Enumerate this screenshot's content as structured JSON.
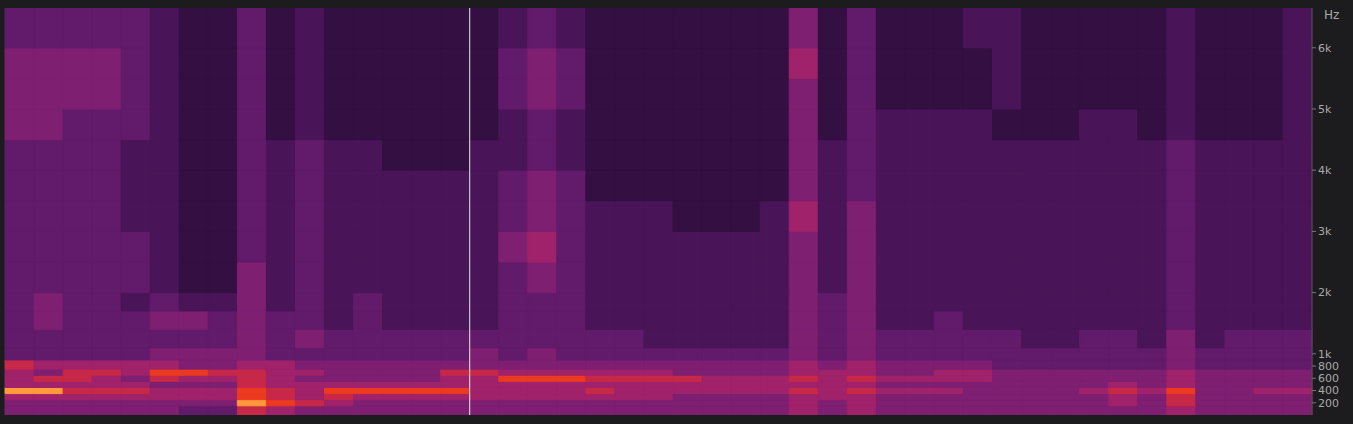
{
  "chart_data": {
    "type": "heatmap",
    "y_label": "Hz",
    "tick_labels": "y",
    "ylim": [
      0,
      6650
    ],
    "yticks": [
      200,
      400,
      600,
      800,
      {
        "value": 1000,
        "label": "1k"
      },
      {
        "value": 2000,
        "label": "2k"
      },
      {
        "value": 3000,
        "label": "3k"
      },
      {
        "value": 4000,
        "label": "4k"
      },
      {
        "value": 5000,
        "label": "5k"
      },
      {
        "value": 6000,
        "label": "6k"
      }
    ],
    "y_bins": [
      0,
      150,
      250,
      350,
      450,
      550,
      650,
      750,
      900,
      1100,
      1400,
      1700,
      2000,
      2500,
      3000,
      3500,
      4000,
      4500,
      5000,
      5500,
      6000,
      6650
    ],
    "color_range": [
      0,
      9
    ],
    "colors": [
      "#120616",
      "#220a2c",
      "#340f42",
      "#4a1558",
      "#621a6a",
      "#7e1f72",
      "#a0226a",
      "#c82848",
      "#ec3a20",
      "#ff9a3c"
    ],
    "cursor": 16,
    "cells": [
      [
        5,
        5,
        6,
        9,
        6,
        6,
        6,
        7,
        4,
        4,
        4,
        4,
        4,
        4,
        4,
        4,
        4,
        5,
        5,
        5,
        4
      ],
      [
        5,
        5,
        6,
        9,
        6,
        7,
        5,
        6,
        4,
        4,
        5,
        5,
        4,
        4,
        4,
        4,
        4,
        5,
        5,
        5,
        4
      ],
      [
        5,
        5,
        6,
        7,
        6,
        7,
        7,
        6,
        4,
        4,
        4,
        4,
        4,
        4,
        4,
        4,
        4,
        4,
        5,
        5,
        4
      ],
      [
        5,
        5,
        6,
        7,
        6,
        6,
        7,
        6,
        4,
        4,
        4,
        4,
        4,
        4,
        4,
        4,
        4,
        4,
        5,
        5,
        4
      ],
      [
        5,
        5,
        6,
        7,
        6,
        5,
        6,
        6,
        4,
        4,
        4,
        3,
        4,
        4,
        3,
        3,
        3,
        4,
        4,
        4,
        4
      ],
      [
        5,
        5,
        6,
        6,
        5,
        7,
        8,
        6,
        5,
        4,
        5,
        4,
        3,
        3,
        3,
        3,
        3,
        3,
        3,
        3,
        3
      ],
      [
        4,
        5,
        6,
        6,
        5,
        6,
        8,
        5,
        5,
        4,
        5,
        3,
        2,
        2,
        2,
        2,
        2,
        2,
        2,
        2,
        2
      ],
      [
        4,
        5,
        6,
        6,
        5,
        6,
        7,
        5,
        5,
        4,
        4,
        3,
        2,
        2,
        2,
        2,
        2,
        2,
        2,
        2,
        2
      ],
      [
        7,
        9,
        8,
        8,
        7,
        7,
        7,
        6,
        5,
        5,
        5,
        5,
        5,
        4,
        4,
        4,
        4,
        4,
        4,
        4,
        4
      ],
      [
        6,
        8,
        7,
        7,
        6,
        6,
        6,
        6,
        4,
        4,
        4,
        3,
        3,
        3,
        3,
        3,
        3,
        2,
        2,
        2,
        2
      ],
      [
        5,
        7,
        6,
        6,
        6,
        5,
        6,
        5,
        4,
        5,
        4,
        4,
        4,
        4,
        4,
        4,
        4,
        3,
        3,
        3,
        3
      ],
      [
        5,
        6,
        7,
        8,
        6,
        5,
        5,
        5,
        4,
        4,
        3,
        3,
        3,
        3,
        3,
        3,
        3,
        2,
        2,
        2,
        2
      ],
      [
        5,
        5,
        6,
        8,
        6,
        5,
        5,
        5,
        4,
        4,
        4,
        4,
        3,
        3,
        3,
        3,
        3,
        2,
        2,
        2,
        2
      ],
      [
        5,
        5,
        6,
        8,
        6,
        5,
        5,
        5,
        4,
        4,
        3,
        3,
        3,
        3,
        3,
        3,
        2,
        2,
        2,
        2,
        2
      ],
      [
        5,
        5,
        6,
        8,
        6,
        5,
        5,
        5,
        4,
        4,
        3,
        3,
        3,
        3,
        3,
        3,
        2,
        2,
        2,
        2,
        2
      ],
      [
        5,
        5,
        6,
        8,
        6,
        6,
        7,
        5,
        4,
        4,
        3,
        3,
        3,
        3,
        3,
        3,
        2,
        2,
        2,
        2,
        2
      ],
      [
        5,
        5,
        6,
        6,
        6,
        6,
        7,
        5,
        5,
        4,
        3,
        3,
        3,
        3,
        3,
        3,
        3,
        2,
        2,
        2,
        2
      ],
      [
        5,
        5,
        6,
        6,
        6,
        8,
        6,
        5,
        4,
        4,
        4,
        4,
        4,
        5,
        4,
        4,
        3,
        3,
        4,
        4,
        3
      ],
      [
        5,
        5,
        6,
        6,
        6,
        8,
        6,
        5,
        5,
        4,
        4,
        4,
        5,
        6,
        5,
        5,
        4,
        4,
        5,
        5,
        4
      ],
      [
        5,
        5,
        6,
        6,
        6,
        8,
        6,
        5,
        4,
        4,
        4,
        4,
        4,
        4,
        4,
        4,
        3,
        3,
        4,
        4,
        3
      ],
      [
        5,
        5,
        6,
        7,
        6,
        7,
        6,
        5,
        4,
        4,
        3,
        3,
        3,
        3,
        3,
        2,
        2,
        2,
        2,
        2,
        2
      ],
      [
        5,
        5,
        6,
        6,
        6,
        7,
        6,
        5,
        4,
        4,
        3,
        3,
        3,
        3,
        3,
        2,
        2,
        2,
        2,
        2,
        2
      ],
      [
        5,
        5,
        6,
        6,
        6,
        7,
        6,
        5,
        4,
        3,
        3,
        3,
        3,
        3,
        3,
        2,
        2,
        2,
        2,
        2,
        2
      ],
      [
        5,
        5,
        5,
        6,
        6,
        7,
        5,
        5,
        4,
        3,
        3,
        3,
        3,
        3,
        2,
        2,
        2,
        2,
        2,
        2,
        2
      ],
      [
        5,
        5,
        5,
        6,
        6,
        6,
        5,
        5,
        4,
        3,
        3,
        3,
        3,
        3,
        2,
        2,
        2,
        2,
        2,
        2,
        2
      ],
      [
        5,
        5,
        5,
        6,
        6,
        6,
        5,
        5,
        4,
        3,
        3,
        3,
        3,
        3,
        2,
        2,
        2,
        2,
        2,
        2,
        2
      ],
      [
        5,
        5,
        5,
        6,
        6,
        6,
        5,
        5,
        4,
        3,
        3,
        3,
        3,
        3,
        3,
        2,
        2,
        2,
        2,
        2,
        2
      ],
      [
        6,
        6,
        6,
        7,
        6,
        7,
        6,
        6,
        5,
        5,
        5,
        5,
        5,
        5,
        6,
        5,
        5,
        5,
        5,
        6,
        5
      ],
      [
        5,
        5,
        6,
        6,
        6,
        6,
        6,
        5,
        4,
        4,
        4,
        4,
        3,
        3,
        3,
        3,
        3,
        2,
        2,
        2,
        2
      ],
      [
        6,
        6,
        6,
        7,
        6,
        7,
        6,
        6,
        5,
        5,
        5,
        5,
        5,
        5,
        5,
        4,
        4,
        4,
        4,
        4,
        4
      ],
      [
        5,
        5,
        5,
        6,
        5,
        6,
        5,
        5,
        4,
        4,
        3,
        3,
        3,
        3,
        3,
        3,
        3,
        3,
        2,
        2,
        2
      ],
      [
        5,
        5,
        5,
        6,
        5,
        6,
        5,
        5,
        4,
        4,
        3,
        3,
        3,
        3,
        3,
        3,
        3,
        3,
        2,
        2,
        2
      ],
      [
        5,
        5,
        5,
        6,
        5,
        6,
        6,
        5,
        4,
        4,
        4,
        3,
        3,
        3,
        3,
        3,
        3,
        3,
        2,
        2,
        2
      ],
      [
        5,
        5,
        5,
        5,
        5,
        6,
        6,
        5,
        4,
        4,
        3,
        3,
        3,
        3,
        3,
        3,
        3,
        3,
        2,
        2,
        3
      ],
      [
        5,
        5,
        5,
        5,
        5,
        5,
        5,
        4,
        4,
        4,
        3,
        3,
        3,
        3,
        3,
        3,
        3,
        2,
        3,
        3,
        3
      ],
      [
        5,
        5,
        5,
        5,
        5,
        5,
        5,
        4,
        4,
        3,
        3,
        3,
        3,
        3,
        3,
        3,
        3,
        2,
        2,
        2,
        2
      ],
      [
        5,
        5,
        5,
        5,
        5,
        5,
        5,
        4,
        4,
        3,
        3,
        3,
        3,
        3,
        3,
        3,
        3,
        2,
        2,
        2,
        2
      ],
      [
        5,
        5,
        5,
        6,
        5,
        5,
        5,
        4,
        4,
        4,
        3,
        3,
        3,
        3,
        3,
        3,
        3,
        3,
        2,
        2,
        2
      ],
      [
        5,
        6,
        6,
        7,
        6,
        5,
        5,
        4,
        4,
        4,
        3,
        3,
        3,
        3,
        3,
        3,
        3,
        3,
        2,
        2,
        2
      ],
      [
        5,
        5,
        5,
        6,
        5,
        5,
        5,
        4,
        4,
        3,
        3,
        3,
        3,
        3,
        3,
        3,
        3,
        2,
        2,
        2,
        2
      ],
      [
        6,
        7,
        7,
        8,
        6,
        6,
        6,
        5,
        5,
        5,
        4,
        4,
        4,
        4,
        4,
        4,
        4,
        3,
        3,
        3,
        3
      ],
      [
        5,
        5,
        5,
        5,
        5,
        5,
        5,
        4,
        4,
        3,
        3,
        3,
        3,
        3,
        3,
        3,
        3,
        2,
        2,
        2,
        2
      ],
      [
        5,
        5,
        5,
        5,
        5,
        5,
        5,
        4,
        4,
        4,
        3,
        3,
        3,
        3,
        3,
        3,
        3,
        2,
        2,
        2,
        2
      ],
      [
        5,
        5,
        5,
        6,
        5,
        5,
        5,
        4,
        4,
        4,
        3,
        3,
        3,
        3,
        3,
        3,
        3,
        2,
        2,
        2,
        2
      ],
      [
        5,
        5,
        5,
        6,
        5,
        5,
        5,
        4,
        4,
        4,
        3,
        3,
        3,
        3,
        3,
        3,
        3,
        3,
        3,
        3,
        3
      ]
    ]
  }
}
